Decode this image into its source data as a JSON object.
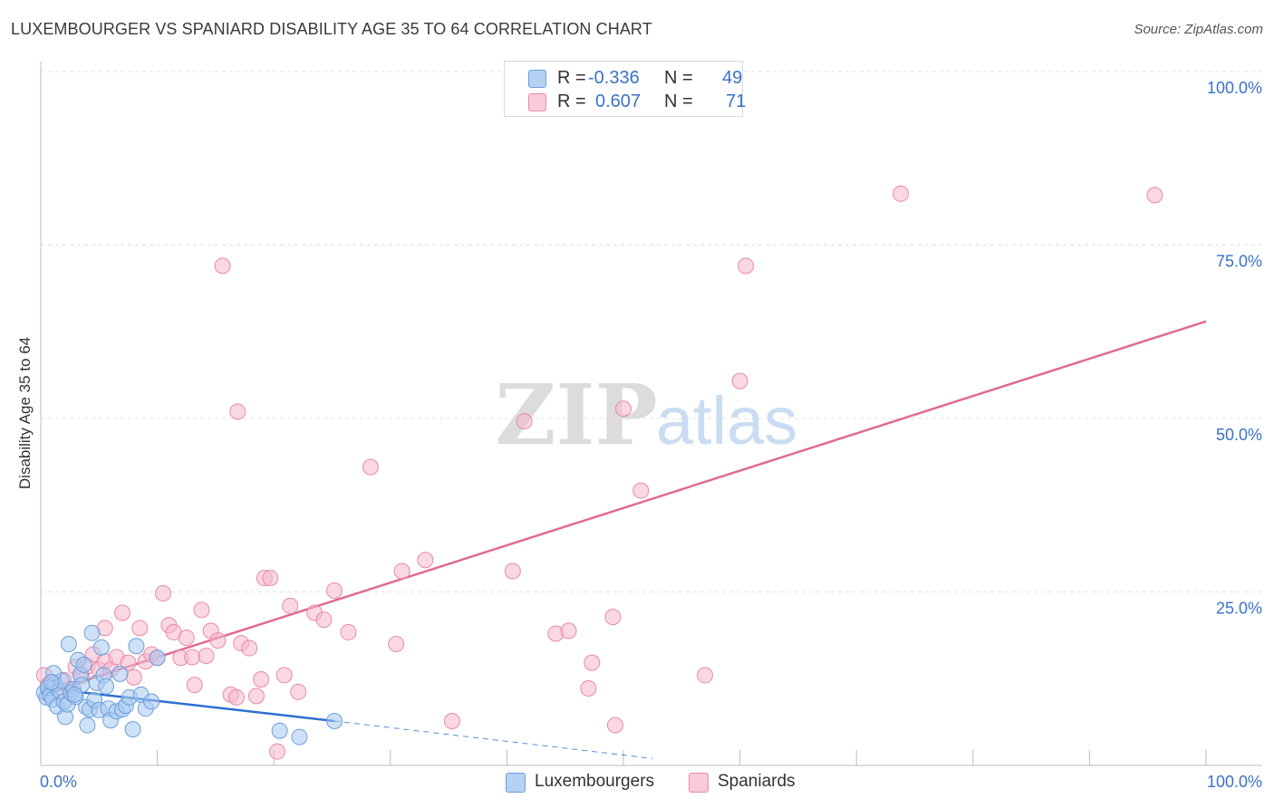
{
  "title": "LUXEMBOURGER VS SPANIARD DISABILITY AGE 35 TO 64 CORRELATION CHART",
  "source": "Source: ZipAtlas.com",
  "watermark": {
    "zip": "ZIP",
    "atlas": "atlas"
  },
  "legend": {
    "r_label": "R =",
    "n_label": "N =",
    "rows": [
      {
        "r": "-0.336",
        "n": "49"
      },
      {
        "r": "0.607",
        "n": "71"
      }
    ]
  },
  "bottom_legend": [
    "Luxembourgers",
    "Spaniards"
  ],
  "colors": {
    "blue_fill": "#a8c8f0",
    "blue_stroke": "#6a9fdc",
    "blue_line": "#2f6fce",
    "pink_fill": "#f6b8cc",
    "pink_stroke": "#e88aa8",
    "pink_line": "#e06b95",
    "tick_text": "#3a72c8",
    "grid": "#e2e2e2",
    "axis": "#bbbbbb"
  },
  "chart_data": {
    "type": "scatter",
    "title": "LUXEMBOURGER VS SPANIARD DISABILITY AGE 35 TO 64 CORRELATION CHART",
    "xlabel": "",
    "ylabel": "Disability Age 35 to 64",
    "xlim": [
      0,
      100
    ],
    "ylim": [
      0,
      100
    ],
    "x_tick_labels": [
      "0.0%",
      "100.0%"
    ],
    "y_ticks": [
      25,
      50,
      75,
      100
    ],
    "y_tick_labels": [
      "25.0%",
      "50.0%",
      "75.0%",
      "100.0%"
    ],
    "grid": true,
    "series": [
      {
        "name": "Luxembourgers",
        "r": -0.336,
        "n": 49,
        "trend": {
          "x0": 0,
          "y0": 11.2,
          "x1": 25.2,
          "y1": 6.4,
          "dashed_to_x": 52.5,
          "dashed_to_y": 1.0
        },
        "points": [
          [
            0.3,
            10.5
          ],
          [
            0.5,
            9.8
          ],
          [
            0.6,
            11.2
          ],
          [
            0.8,
            10.1
          ],
          [
            1.0,
            9.5
          ],
          [
            1.2,
            11.8
          ],
          [
            1.4,
            8.5
          ],
          [
            1.6,
            10.8
          ],
          [
            1.8,
            12.2
          ],
          [
            2.0,
            9.2
          ],
          [
            2.1,
            7.0
          ],
          [
            2.3,
            8.8
          ],
          [
            2.4,
            17.5
          ],
          [
            2.6,
            10.4
          ],
          [
            2.8,
            11.0
          ],
          [
            3.0,
            9.9
          ],
          [
            3.2,
            15.2
          ],
          [
            3.4,
            13.1
          ],
          [
            3.5,
            11.6
          ],
          [
            3.7,
            14.5
          ],
          [
            3.9,
            8.4
          ],
          [
            4.0,
            5.8
          ],
          [
            4.2,
            8.1
          ],
          [
            4.4,
            19.1
          ],
          [
            4.6,
            9.4
          ],
          [
            4.8,
            11.9
          ],
          [
            5.0,
            8.0
          ],
          [
            5.2,
            17.0
          ],
          [
            5.4,
            13.0
          ],
          [
            5.6,
            11.4
          ],
          [
            5.8,
            8.2
          ],
          [
            6.0,
            6.5
          ],
          [
            6.5,
            7.8
          ],
          [
            6.8,
            13.2
          ],
          [
            7.0,
            8.1
          ],
          [
            7.3,
            8.6
          ],
          [
            7.6,
            9.8
          ],
          [
            7.9,
            5.2
          ],
          [
            8.2,
            17.2
          ],
          [
            8.6,
            10.2
          ],
          [
            9.0,
            8.2
          ],
          [
            9.5,
            9.2
          ],
          [
            10.0,
            15.5
          ],
          [
            20.5,
            5.0
          ],
          [
            22.2,
            4.1
          ],
          [
            25.2,
            6.4
          ],
          [
            1.1,
            13.3
          ],
          [
            2.9,
            10.2
          ],
          [
            0.9,
            12.0
          ]
        ]
      },
      {
        "name": "Spaniards",
        "r": 0.607,
        "n": 71,
        "trend": {
          "x0": 0,
          "y0": 10.2,
          "x1": 100,
          "y1": 64.0
        },
        "points": [
          [
            0.3,
            13.0
          ],
          [
            0.6,
            11.5
          ],
          [
            1.0,
            12.0
          ],
          [
            1.5,
            10.5
          ],
          [
            2.0,
            12.3
          ],
          [
            2.5,
            11.0
          ],
          [
            3.0,
            14.2
          ],
          [
            3.5,
            12.9
          ],
          [
            4.0,
            14.3
          ],
          [
            4.5,
            16.0
          ],
          [
            5.0,
            13.8
          ],
          [
            5.5,
            15.0
          ],
          [
            5.5,
            19.8
          ],
          [
            6.0,
            13.8
          ],
          [
            6.5,
            15.6
          ],
          [
            7.0,
            22.0
          ],
          [
            7.5,
            14.8
          ],
          [
            8.0,
            12.7
          ],
          [
            8.5,
            19.8
          ],
          [
            9.0,
            15.0
          ],
          [
            9.5,
            16.0
          ],
          [
            10.0,
            15.5
          ],
          [
            10.5,
            24.8
          ],
          [
            11.0,
            20.2
          ],
          [
            11.4,
            19.2
          ],
          [
            12.0,
            15.5
          ],
          [
            12.5,
            18.4
          ],
          [
            13.0,
            15.6
          ],
          [
            13.2,
            11.6
          ],
          [
            13.8,
            22.4
          ],
          [
            14.2,
            15.8
          ],
          [
            14.6,
            19.4
          ],
          [
            15.2,
            18.0
          ],
          [
            15.6,
            72.0
          ],
          [
            16.3,
            10.2
          ],
          [
            16.8,
            9.8
          ],
          [
            16.9,
            51.0
          ],
          [
            17.2,
            17.6
          ],
          [
            17.9,
            16.9
          ],
          [
            18.5,
            10.0
          ],
          [
            18.9,
            12.4
          ],
          [
            19.2,
            27.0
          ],
          [
            19.7,
            27.0
          ],
          [
            20.3,
            2.0
          ],
          [
            20.9,
            13.0
          ],
          [
            21.4,
            23.0
          ],
          [
            22.1,
            10.6
          ],
          [
            23.5,
            22.0
          ],
          [
            24.3,
            21.0
          ],
          [
            25.2,
            25.2
          ],
          [
            26.4,
            19.2
          ],
          [
            28.3,
            43.0
          ],
          [
            30.5,
            17.5
          ],
          [
            31.0,
            28.0
          ],
          [
            33.0,
            29.6
          ],
          [
            35.3,
            6.4
          ],
          [
            40.5,
            28.0
          ],
          [
            41.5,
            49.6
          ],
          [
            44.2,
            19.0
          ],
          [
            45.3,
            19.4
          ],
          [
            47.0,
            11.1
          ],
          [
            47.3,
            14.8
          ],
          [
            49.1,
            21.4
          ],
          [
            49.3,
            5.8
          ],
          [
            50.0,
            51.4
          ],
          [
            51.5,
            39.6
          ],
          [
            57.0,
            13.0
          ],
          [
            60.0,
            55.4
          ],
          [
            60.5,
            72.0
          ],
          [
            73.8,
            82.4
          ],
          [
            95.6,
            82.2
          ]
        ]
      }
    ]
  }
}
